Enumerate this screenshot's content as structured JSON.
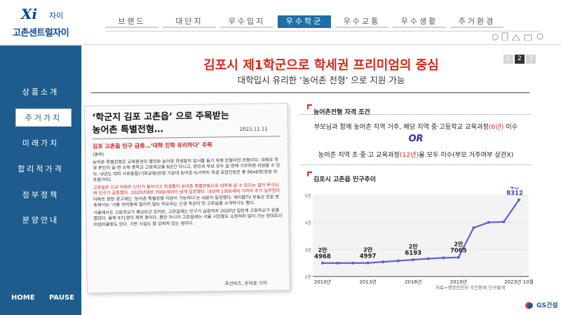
{
  "header": {
    "logo_mark": "Xi",
    "logo_sub": "자이",
    "logo_name": "고촌센트럴자이",
    "nav": [
      {
        "label": "브랜드"
      },
      {
        "label": "대단지"
      },
      {
        "label": "우수입지"
      },
      {
        "label": "우수학군"
      },
      {
        "label": "우수교통"
      },
      {
        "label": "우수생활"
      },
      {
        "label": "주거환경"
      }
    ],
    "active_index": 3
  },
  "sidebar": {
    "items": [
      {
        "label": "상품소개"
      },
      {
        "label": "주거가치"
      },
      {
        "label": "미래가치"
      },
      {
        "label": "합리적가격"
      },
      {
        "label": "정부정책"
      },
      {
        "label": "분양안내"
      }
    ],
    "active_index": 1,
    "home_label": "HOME",
    "pause_label": "PAUSE"
  },
  "main": {
    "title": "김포시 제1학군으로 학세권 프리미엄의 중심",
    "subtitle": "대학입시 유리한 ‘농어촌 전형’ 으로 지원 가능",
    "pager": [
      "1",
      "2",
      "3"
    ],
    "pager_active": 1
  },
  "article": {
    "headline": "‘학군지 김포 고촌읍’ 으로 주목받는 농어촌 특별전형…",
    "date": "2023.11.11",
    "subhead": "김포 고촌읍 인구 급증…‘대학 진학 유리하다’ 주목",
    "p1": "(중략)",
    "p2": "농어촌 특별전형은 교육환경이 열악한 농어촌 학생들의 입시를 돕기 위해 만들어진 전형이다. 대체로 학생 본인이 읍·면 소재 중학교·고등학교를 6년간 다니고, 본인과 부모 모두 읍·면에 거주하면 지원할 수 있다. 내년도 대학 사회통합(기회균형)전형 가운데 농어촌·도서벽지 학생 모집인원은 총 9646명(정원 외 포함)이다.",
    "p3_red": "고촌읍은 신규 아파트 단지가 들어서고 학생들이 농어촌 특별전형으로 대학에 갈 수 있다는 점이 부각되며 인구가 급증했다. 2020년에만 7000세대가 넘게 입주했다. 내년에 1300세대 가까이 추가 입주한다.",
    "p3_rest": " 아파트 분양 광고에는 ‘농어촌 특별전형 지원이 가능하다’는 내용이 등장했다. 케이블TV 부동산 전문 방송에서는 ‘서울 대치동에 밀리지 않는 떠오르는 신생 학군지’로 고촌읍을 소개하기도 했다.",
    "p4": "서울에서도 고등학교가 폐교되고 있지만, 고촌읍에는 인구가 급증하자 2020년 일반계 고등학교가 문을 열었다. 올해 971명이 재학 중이다. 뿐만 아니라 고촌읍에는 서울 시민들도 쇼핑하러 많이 가는 현대프리미엄아울렛도 있다. 기반 시설도 잘 갖춰져 있는 셈이다.",
    "byline": "조선비즈, 손덕호 기자"
  },
  "criteria": {
    "title": "농어촌전형 자격 조건",
    "line1_a": "부모님과 함께 농어촌 지역 거주, 해당 지역 중·고등학교 교육과정",
    "line1_hl": "(6년)",
    "line1_b": " 이수",
    "or_label": "OR",
    "line2_a": "농어촌 지역 초·중·고 교육과정",
    "line2_hl": "(12년)",
    "line2_b": "을 모두 이수(부모 거주여부 상관X)"
  },
  "population": {
    "title": "김포시 고촌읍 인구추이",
    "source": "자료=행정안전부 주민등록 인구통계"
  },
  "chart_data": {
    "type": "line",
    "title": "김포시 고촌읍 인구추이",
    "x": [
      "2010년",
      "2011년",
      "2012년",
      "2013년",
      "2014년",
      "2015년",
      "2016년",
      "2017년",
      "2018년",
      "2019년",
      "2020년",
      "2021년",
      "2022년",
      "2023년 10월"
    ],
    "x_tick_labels": [
      "2010년",
      "2013년",
      "2016년",
      "2019년",
      "2023년 10월"
    ],
    "series": [
      {
        "values": [
          24968,
          24950,
          24970,
          24997,
          25400,
          25800,
          26193,
          26600,
          26900,
          27065,
          38000,
          40000,
          40200,
          48312
        ]
      }
    ],
    "y_tick_labels": [
      "2만",
      "3만",
      "4만",
      "5만"
    ],
    "ylim": [
      20000,
      50000
    ],
    "data_labels": [
      {
        "index": 0,
        "top": "2만",
        "bottom": "4968"
      },
      {
        "index": 3,
        "top": "2만",
        "bottom": "4997"
      },
      {
        "index": 6,
        "top": "2만",
        "bottom": "6193"
      },
      {
        "index": 9,
        "top": "2만",
        "bottom": "7065"
      },
      {
        "index": 13,
        "top": "4만",
        "bottom": "8312"
      }
    ],
    "colors": {
      "line": "#5b5fd6",
      "highlight": "#3a3fc0"
    }
  },
  "footer": {
    "brand": "GS건설"
  }
}
